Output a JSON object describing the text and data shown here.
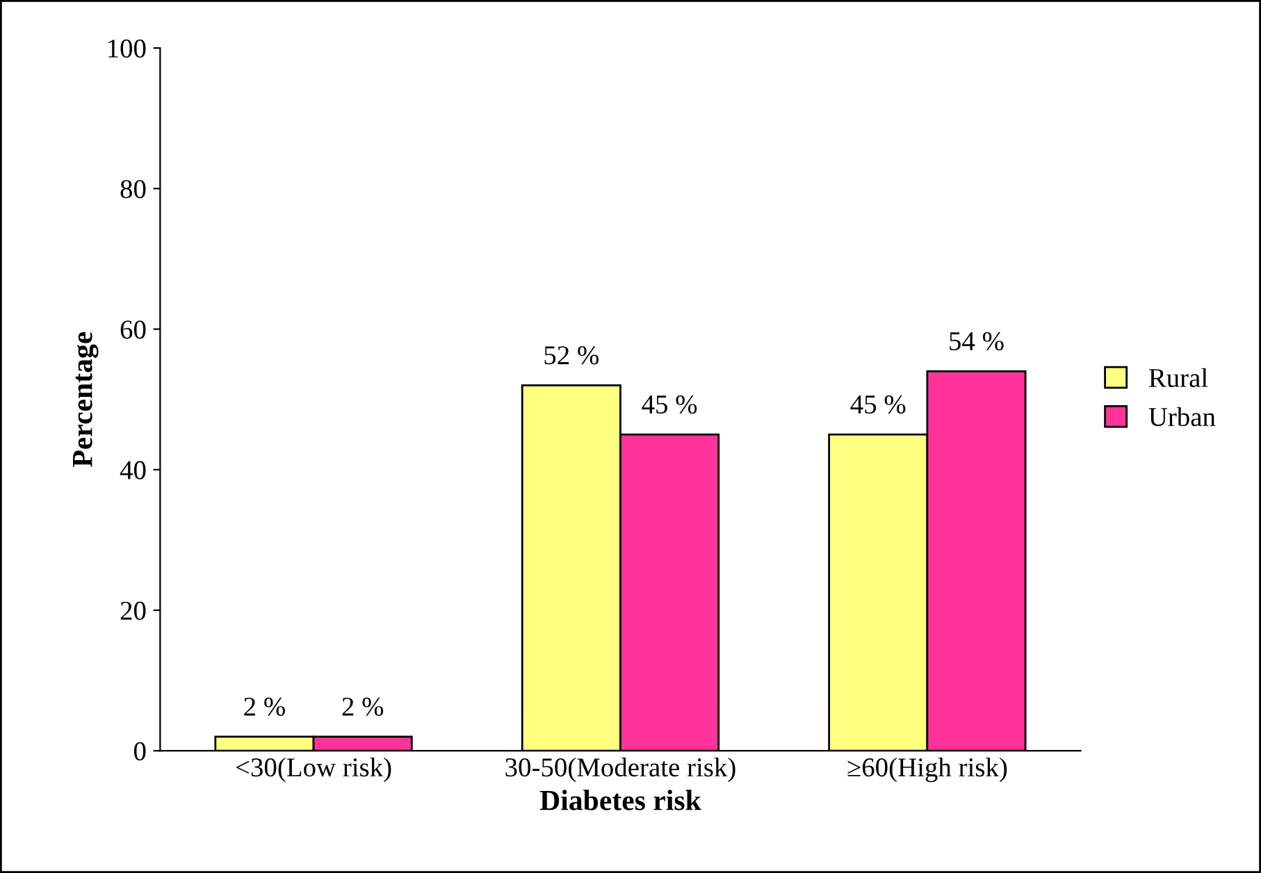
{
  "chart_data": {
    "type": "bar",
    "xlabel": "Diabetes risk",
    "ylabel": "Percentage",
    "categories": [
      "<30(Low risk)",
      "30-50(Moderate risk)",
      "≥60(High risk)"
    ],
    "series": [
      {
        "name": "Rural",
        "color": "#ffff80",
        "values": [
          2,
          52,
          45
        ],
        "value_labels": [
          "2 %",
          "52 %",
          "45 %"
        ]
      },
      {
        "name": "Urban",
        "color": "#ff3399",
        "values": [
          2,
          45,
          54
        ],
        "value_labels": [
          "2 %",
          "45 %",
          "54 %"
        ]
      }
    ],
    "ylim": [
      0,
      100
    ],
    "yticks": [
      0,
      20,
      40,
      60,
      80,
      100
    ],
    "grid": false,
    "legend": "right"
  }
}
